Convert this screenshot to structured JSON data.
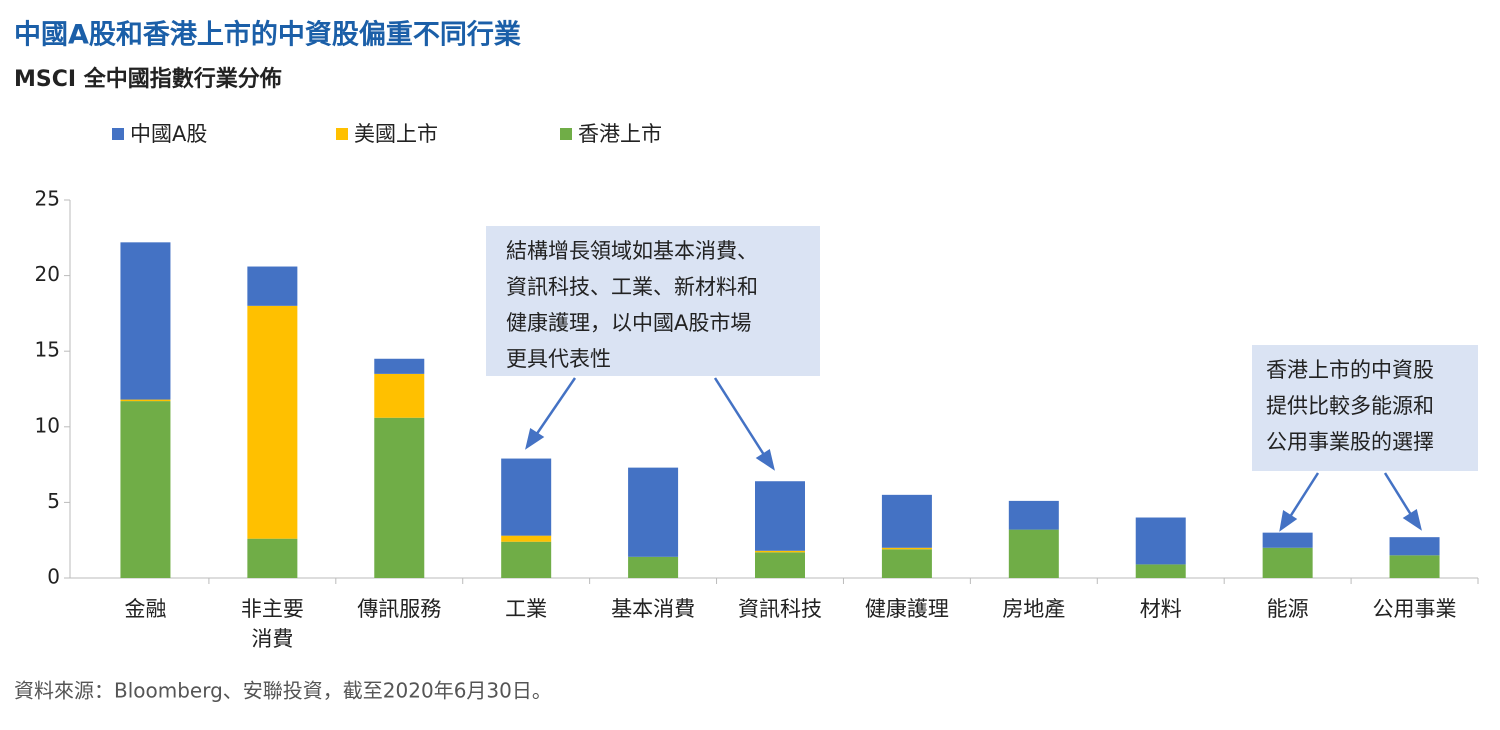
{
  "chart_data": {
    "type": "stacked_bar",
    "title": "中國A股和香港上市的中資股偏重不同行業",
    "subtitle": "MSCI 全中國指數行業分佈",
    "categories": [
      "金融",
      "非主要\n消費",
      "傳訊服務",
      "工業",
      "基本消費",
      "資訊科技",
      "健康護理",
      "房地產",
      "材料",
      "能源",
      "公用事業"
    ],
    "series": [
      {
        "name": "香港上市",
        "color": "#70ad47",
        "values": [
          11.7,
          2.6,
          10.6,
          2.4,
          1.4,
          1.7,
          1.9,
          3.2,
          0.9,
          2.0,
          1.5
        ]
      },
      {
        "name": "美國上市",
        "color": "#ffc000",
        "values": [
          0.1,
          15.4,
          2.9,
          0.4,
          0,
          0.1,
          0.1,
          0,
          0,
          0,
          0
        ]
      },
      {
        "name": "中國A股",
        "color": "#4472c4",
        "values": [
          10.4,
          2.6,
          1.0,
          5.1,
          5.9,
          4.6,
          3.5,
          1.9,
          3.1,
          1.0,
          1.2
        ]
      }
    ],
    "legend_order": [
      2,
      1,
      0
    ],
    "ylim": [
      0,
      25
    ],
    "yticks": [
      0,
      5,
      10,
      15,
      20,
      25
    ],
    "grid": false,
    "annotations": [
      [
        "結構增長領域如基本消費、",
        "資訊科技、工業、新材料和",
        "健康護理，以中國A股市場",
        "更具代表性"
      ],
      [
        "香港上市的中資股",
        "提供比較多能源和",
        "公用事業股的選擇"
      ]
    ],
    "source": "資料來源：Bloomberg、安聯投資，截至2020年6月30日。"
  }
}
